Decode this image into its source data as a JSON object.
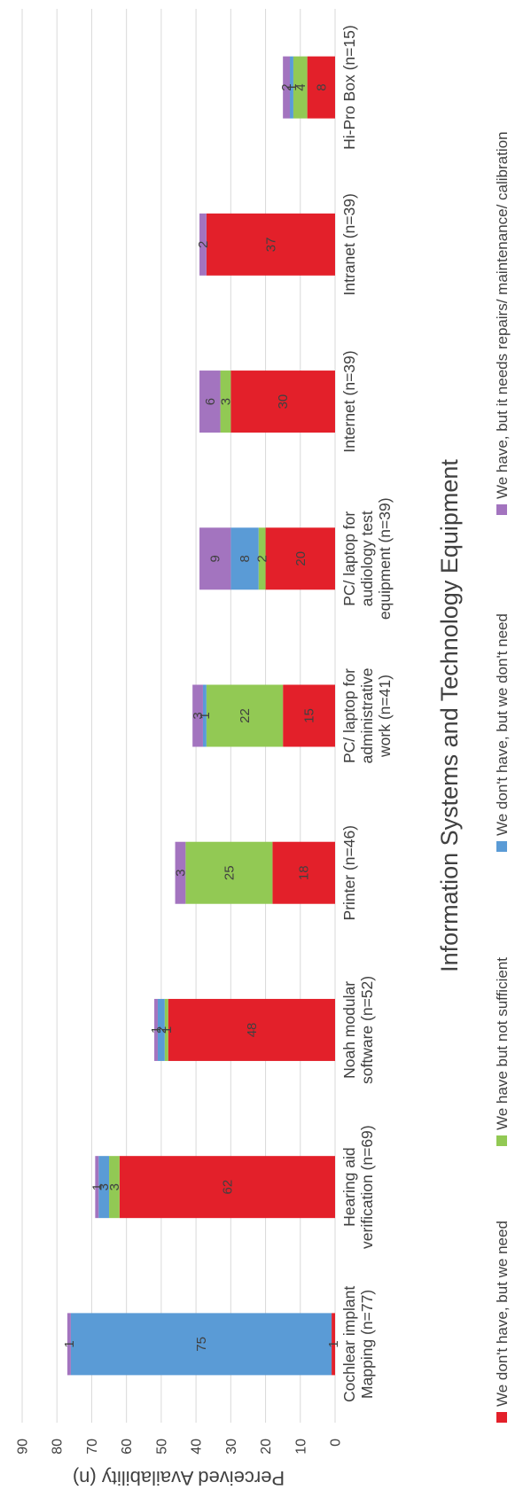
{
  "chart_data": {
    "type": "bar",
    "stacked": true,
    "orientation": "vertical",
    "xlabel": "Information Systems and Technology Equipment",
    "ylabel": "Perceived Availability (n)",
    "ylim": [
      0,
      90
    ],
    "yticks": [
      0,
      10,
      20,
      30,
      40,
      50,
      60,
      70,
      80,
      90
    ],
    "grid": true,
    "legend_position": "bottom",
    "categories": [
      [
        "Cochlear implant",
        "Mapping (n=77)"
      ],
      [
        "Hearing aid",
        "verification (n=69)"
      ],
      [
        "Noah modular",
        "software (n=52)"
      ],
      [
        "Printer (n=46)"
      ],
      [
        "PC/ laptop for",
        "administrative",
        "work (n=41)"
      ],
      [
        "PC/ laptop for",
        "audiology test",
        "equipment (n=39)"
      ],
      [
        "Internet (n=39)"
      ],
      [
        "Intranet (n=39)"
      ],
      [
        "Hi-Pro Box (n=15)"
      ]
    ],
    "series": [
      {
        "name": "We don't have, but we need",
        "color": "#e3202a",
        "values": [
          1,
          62,
          48,
          18,
          15,
          20,
          30,
          37,
          8
        ]
      },
      {
        "name": "We have but not sufficient",
        "color": "#92c954",
        "values": [
          0,
          3,
          1,
          25,
          22,
          2,
          3,
          0,
          4
        ]
      },
      {
        "name": "We don't have, but we don't need",
        "color": "#5a9bd6",
        "values": [
          75,
          3,
          2,
          0,
          1,
          8,
          0,
          0,
          1
        ]
      },
      {
        "name": "We have, but it needs repairs/ maintenance/ calibration",
        "color": "#a374bf",
        "values": [
          1,
          1,
          1,
          3,
          3,
          9,
          6,
          2,
          2
        ]
      }
    ],
    "data_labels": [
      [
        "1",
        "",
        "75",
        "1"
      ],
      [
        "62",
        "3",
        "3",
        "1"
      ],
      [
        "48",
        "1",
        "2",
        "1"
      ],
      [
        "18",
        "25",
        "",
        "3"
      ],
      [
        "15",
        "22",
        "1",
        "3"
      ],
      [
        "20",
        "2",
        "8",
        "9"
      ],
      [
        "30",
        "3",
        "",
        "6"
      ],
      [
        "37",
        "",
        "",
        "2"
      ],
      [
        "8",
        "4",
        "1",
        "2"
      ]
    ]
  }
}
